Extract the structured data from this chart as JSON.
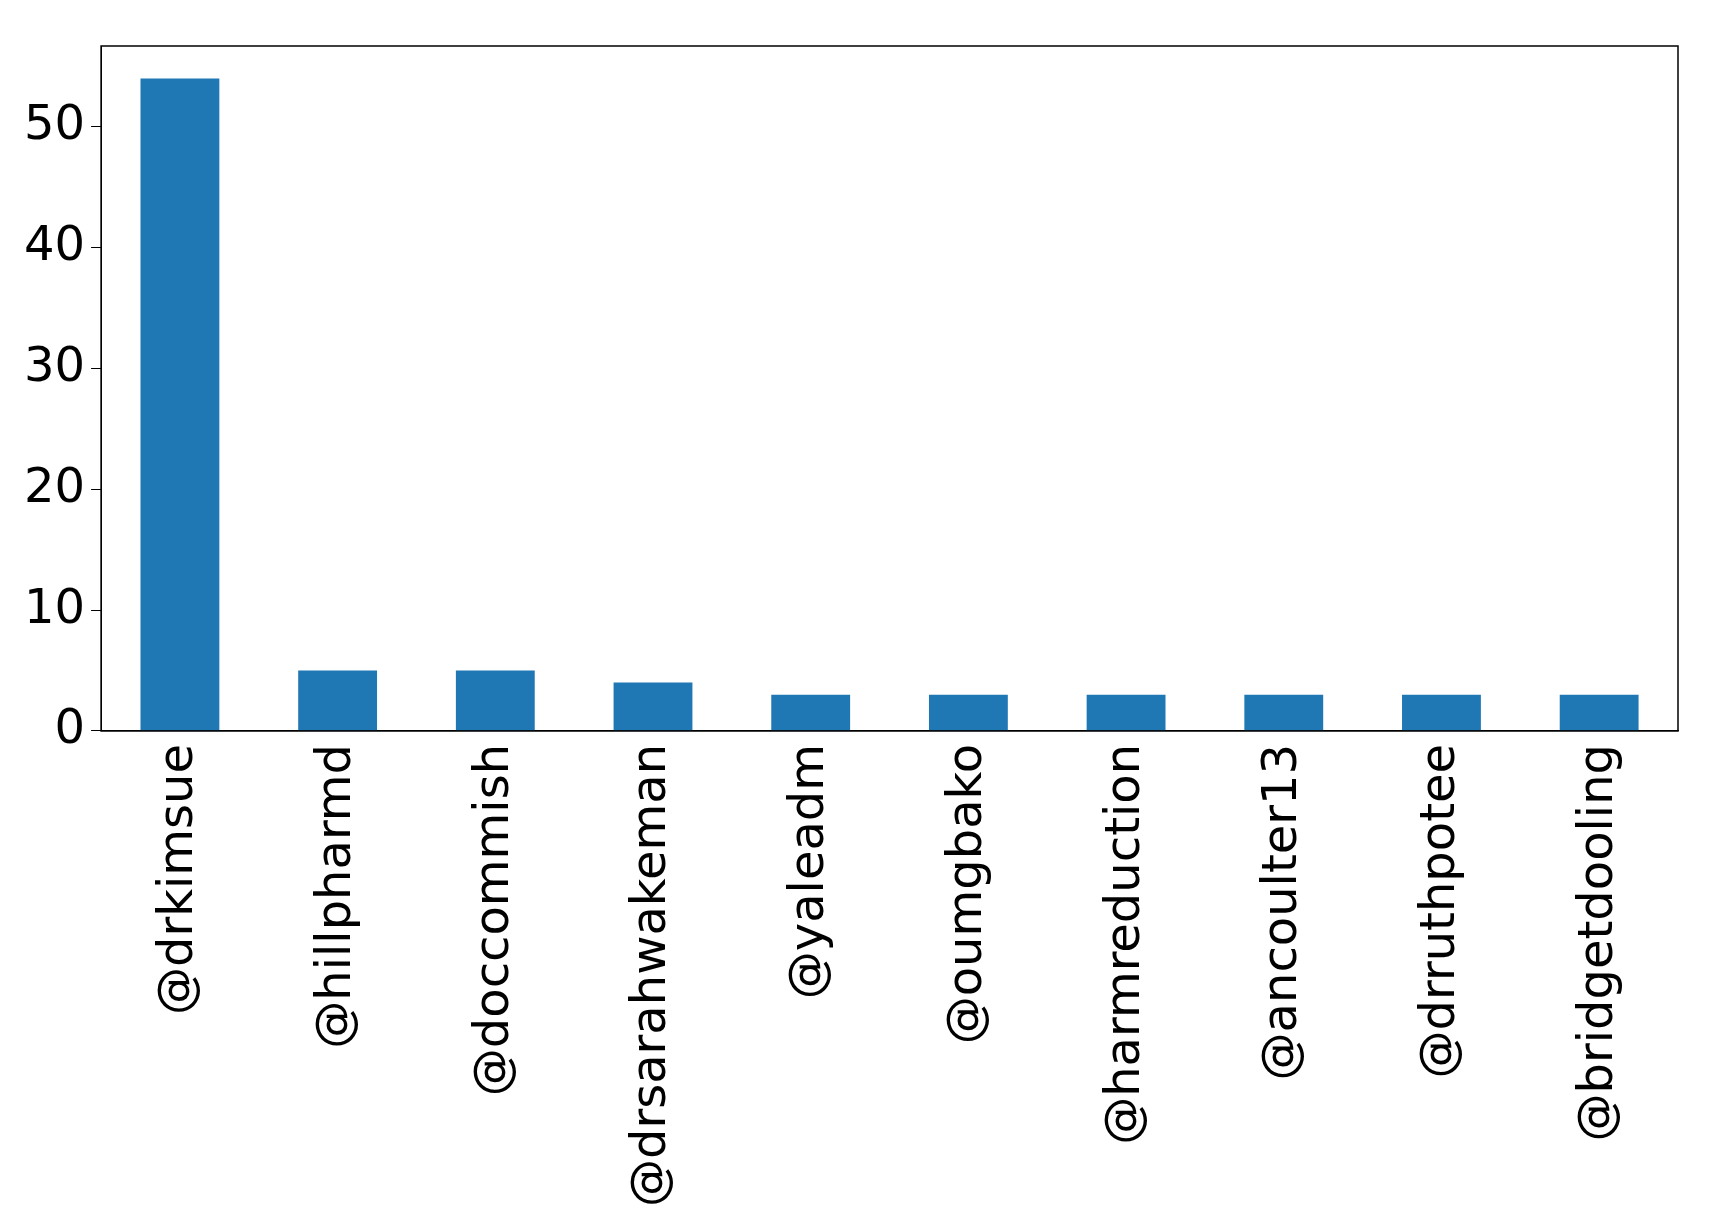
{
  "chart_data": {
    "type": "bar",
    "categories": [
      "@drkimsue",
      "@hillpharmd",
      "@doccommish",
      "@drsarahwakeman",
      "@yaleadm",
      "@oumgbako",
      "@harmreduction",
      "@ancoulter13",
      "@drruthpotee",
      "@bridgetdooling"
    ],
    "values": [
      54,
      5,
      5,
      4,
      3,
      3,
      3,
      3,
      3,
      3
    ],
    "color": "#1f77b4",
    "ylim": [
      0,
      56.7
    ],
    "yticks": [
      0,
      10,
      20,
      30,
      40,
      50
    ],
    "grid": false,
    "legend": false
  }
}
